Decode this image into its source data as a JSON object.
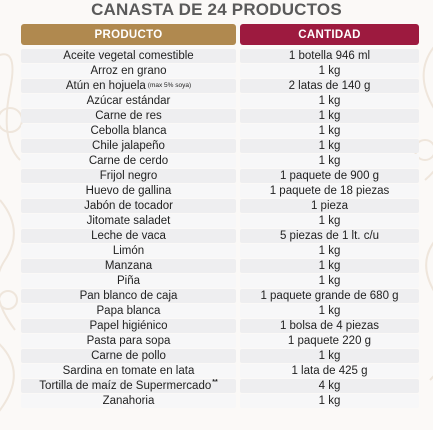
{
  "title": "CANASTA DE 24 PRODUCTOS",
  "headers": {
    "producto": "PRODUCTO",
    "cantidad": "CANTIDAD"
  },
  "colors": {
    "producto_header": "#b0894f",
    "cantidad_header": "#9d1a3f",
    "row_background": "#eeeef0"
  },
  "rows": [
    {
      "producto": "Aceite vegetal comestible",
      "note": "",
      "cantidad": "1 botella 946 ml"
    },
    {
      "producto": "Arroz en grano",
      "note": "",
      "cantidad": "1 kg"
    },
    {
      "producto": "Atún en hojuela",
      "note": "(max 5% soya)",
      "cantidad": "2 latas de 140 g"
    },
    {
      "producto": "Azúcar estándar",
      "note": "",
      "cantidad": "1 kg"
    },
    {
      "producto": "Carne de res",
      "note": "",
      "cantidad": "1 kg"
    },
    {
      "producto": "Cebolla blanca",
      "note": "",
      "cantidad": "1 kg"
    },
    {
      "producto": "Chile jalapeño",
      "note": "",
      "cantidad": "1 kg"
    },
    {
      "producto": "Carne de cerdo",
      "note": "",
      "cantidad": "1 kg"
    },
    {
      "producto": "Frijol negro",
      "note": "",
      "cantidad": "1 paquete de 900 g"
    },
    {
      "producto": "Huevo de gallina",
      "note": "",
      "cantidad": "1 paquete de 18 piezas"
    },
    {
      "producto": "Jabón de tocador",
      "note": "",
      "cantidad": "1 pieza"
    },
    {
      "producto": "Jitomate saladet",
      "note": "",
      "cantidad": "1 kg"
    },
    {
      "producto": "Leche de vaca",
      "note": "",
      "cantidad": "5 piezas de 1 lt. c/u"
    },
    {
      "producto": "Limón",
      "note": "",
      "cantidad": "1 kg"
    },
    {
      "producto": "Manzana",
      "note": "",
      "cantidad": "1 kg"
    },
    {
      "producto": "Piña",
      "note": "",
      "cantidad": "1 kg"
    },
    {
      "producto": "Pan blanco de caja",
      "note": "",
      "cantidad": "1 paquete grande de 680 g"
    },
    {
      "producto": "Papa blanca",
      "note": "",
      "cantidad": "1 kg"
    },
    {
      "producto": "Papel higiénico",
      "note": "",
      "cantidad": "1 bolsa de 4 piezas"
    },
    {
      "producto": "Pasta para sopa",
      "note": "",
      "cantidad": "1 paquete 220 g"
    },
    {
      "producto": "Carne de pollo",
      "note": "",
      "cantidad": "1 kg"
    },
    {
      "producto": "Sardina en tomate en lata",
      "note": "",
      "cantidad": "1 lata de 425 g"
    },
    {
      "producto": "Tortilla de maíz de Supermercado",
      "note": "**",
      "cantidad": "4 kg"
    },
    {
      "producto": "Zanahoria",
      "note": "",
      "cantidad": "1 kg"
    }
  ]
}
